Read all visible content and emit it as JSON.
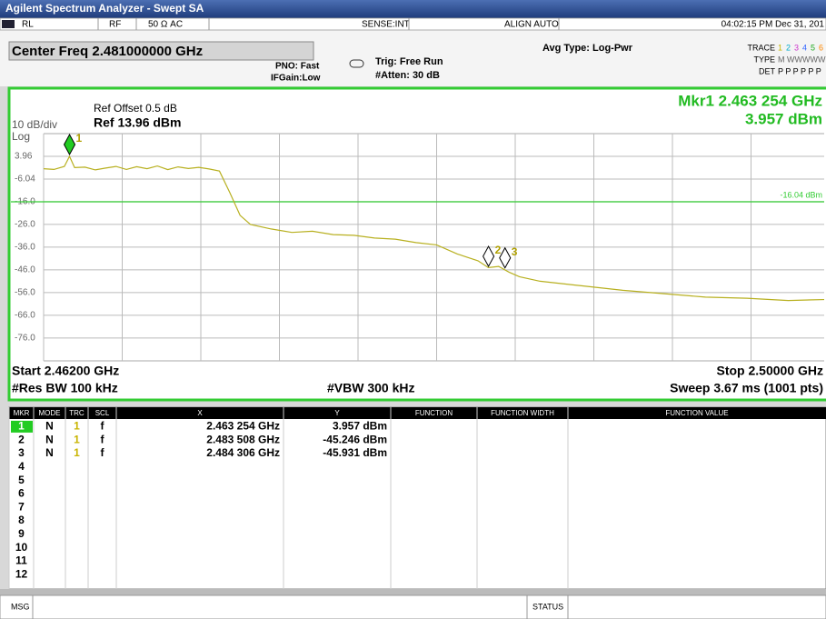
{
  "title_bar": {
    "title": "Agilent Spectrum Analyzer - Swept SA"
  },
  "status_row": {
    "rl": "RL",
    "rf": "RF",
    "input": "50 Ω  AC",
    "sense": "SENSE:INT",
    "align": "ALIGN AUTO",
    "time": "04:02:15 PM Dec 31, 201"
  },
  "settings": {
    "center_freq": "Center Freq 2.481000000 GHz",
    "pno": "PNO: Fast",
    "ifgain": "IFGain:Low",
    "trig": "Trig: Free Run",
    "atten": "#Atten: 30 dB",
    "avg_type": "Avg Type: Log-Pwr",
    "trace_label": "TRACE",
    "trace_numbers": [
      "1",
      "2",
      "3",
      "4",
      "5",
      "6"
    ],
    "type_label": "TYPE",
    "type_value": "M WWWWW",
    "det_label": "DET",
    "det_value": "P P P P P P"
  },
  "graph": {
    "ref_offset": "Ref Offset 0.5 dB",
    "ref_level": "Ref 13.96 dBm",
    "scale": "10 dB/div",
    "scale_type": "Log",
    "marker_readout_freq": "Mkr1 2.463 254 GHz",
    "marker_readout_amp": "3.957 dBm",
    "xlim": [
      2.462,
      2.5
    ],
    "ylim": [
      -86.04,
      13.96
    ],
    "yticks": [
      3.96,
      -6.04,
      {
        "value": -16,
        "label": "-16.0"
      },
      {
        "value": -26,
        "label": "-26.0"
      },
      {
        "value": -36,
        "label": "-36.0"
      },
      {
        "value": -46,
        "label": "-46.0"
      },
      {
        "value": -56,
        "label": "-56.0"
      },
      {
        "value": -66,
        "label": "-66.0"
      },
      {
        "value": -76,
        "label": "-76.0"
      }
    ],
    "display_line": {
      "value": -16.04,
      "label": "-16.04 dBm"
    },
    "trace": {
      "color": "#b8b020",
      "x": [
        2.462,
        2.4625,
        2.463,
        2.463254,
        2.4635,
        2.464,
        2.4645,
        2.465,
        2.4655,
        2.466,
        2.4665,
        2.467,
        2.4675,
        2.468,
        2.4685,
        2.469,
        2.4695,
        2.47,
        2.4705,
        2.471,
        2.4715,
        2.472,
        2.473,
        2.474,
        2.475,
        2.476,
        2.477,
        2.478,
        2.479,
        2.48,
        2.481,
        2.482,
        2.483,
        2.4835,
        2.484,
        2.4845,
        2.485,
        2.486,
        2.488,
        2.49,
        2.492,
        2.494,
        2.496,
        2.498,
        2.5
      ],
      "y": [
        -1.5,
        -1.8,
        -0.5,
        3.957,
        -1,
        -0.8,
        -2,
        -1.2,
        -0.5,
        -1.8,
        -0.6,
        -1.5,
        -0.3,
        -1.9,
        -0.7,
        -1.4,
        -0.9,
        -1.6,
        -2.5,
        -12,
        -22,
        -26,
        -28,
        -29.5,
        -29,
        -30.5,
        -30.8,
        -32,
        -32.5,
        -34,
        -35,
        -39,
        -42,
        -45,
        -44.5,
        -47,
        -49,
        -51,
        -53,
        -55,
        -56.5,
        -58,
        -58.5,
        -59.5,
        -59
      ]
    },
    "markers": [
      {
        "label": "1",
        "x": 2.463254,
        "y": 3.957
      },
      {
        "label": "2",
        "x": 2.483508,
        "y": -45.246
      },
      {
        "label": "3",
        "x": 2.484306,
        "y": -45.931
      }
    ],
    "start": "Start 2.46200 GHz",
    "stop": "Stop 2.50000 GHz",
    "rbw": "#Res BW 100 kHz",
    "vbw": "#VBW 300 kHz",
    "sweep": "Sweep  3.67 ms (1001 pts)"
  },
  "marker_table": {
    "columns": [
      "MKR",
      "MODE",
      "TRC",
      "SCL",
      "X",
      "Y",
      "FUNCTION",
      "FUNCTION WIDTH",
      "FUNCTION VALUE"
    ],
    "rows": [
      [
        "1",
        "N",
        "1",
        "f",
        "2.463 254 GHz",
        "3.957 dBm"
      ],
      [
        "2",
        "N",
        "1",
        "f",
        "2.483 508 GHz",
        "-45.246 dBm"
      ],
      [
        "3",
        "N",
        "1",
        "f",
        "2.484 306 GHz",
        "-45.931 dBm"
      ],
      [
        "4"
      ],
      [
        "5"
      ],
      [
        "6"
      ],
      [
        "7"
      ],
      [
        "8"
      ],
      [
        "9"
      ],
      [
        "10"
      ],
      [
        "11"
      ],
      [
        "12"
      ]
    ]
  },
  "message_bar": {
    "msg": "MSG",
    "status": "STATUS"
  }
}
